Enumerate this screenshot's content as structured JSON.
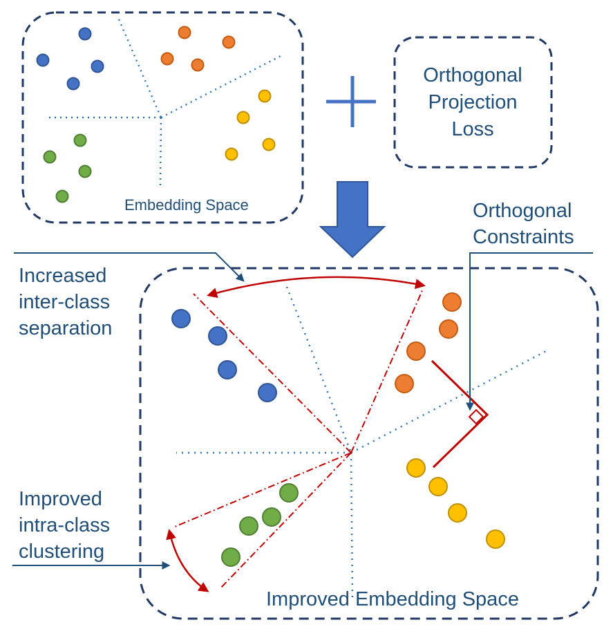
{
  "top_panel": {
    "label": "Embedding Space",
    "clusters": [
      {
        "name": "blue",
        "color": "#4472c4",
        "stroke": "#2f5597"
      },
      {
        "name": "orange",
        "color": "#ed7d31",
        "stroke": "#c55a11"
      },
      {
        "name": "yellow",
        "color": "#ffc000",
        "stroke": "#bf9000"
      },
      {
        "name": "green",
        "color": "#70ad47",
        "stroke": "#507e32"
      }
    ]
  },
  "loss_box": {
    "line1": "Orthogonal",
    "line2": "Projection",
    "line3": "Loss"
  },
  "plus_symbol_color": "#4472c4",
  "arrow_color": "#4472c4",
  "bottom_panel": {
    "label": "Improved Embedding Space"
  },
  "annotations": {
    "inter_class": [
      "Increased",
      "inter-class",
      "separation"
    ],
    "orthogonal": [
      "Orthogonal",
      "Constraints"
    ],
    "intra_class": [
      "Improved",
      "intra-class",
      "clustering"
    ]
  },
  "colors": {
    "border": "#203864",
    "dotted": "#2e75b6",
    "red": "#c00000",
    "text": "#1f4e79"
  }
}
